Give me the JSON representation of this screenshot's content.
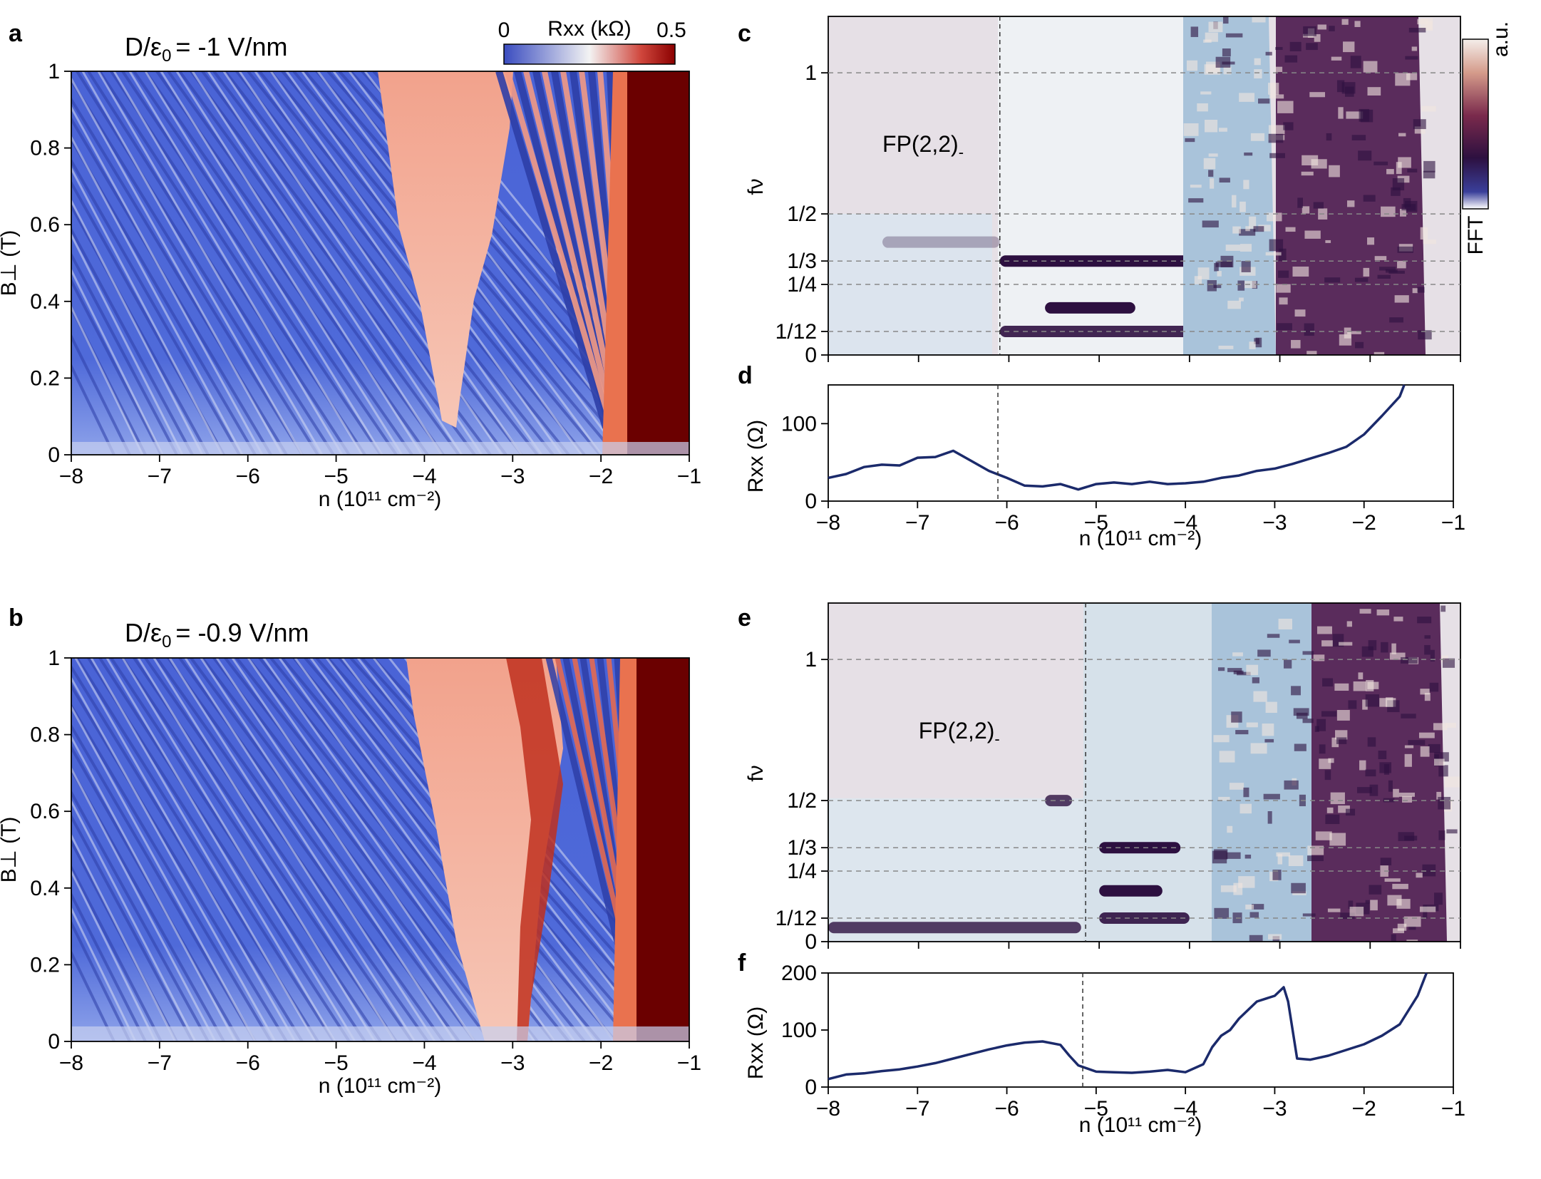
{
  "colors": {
    "cold": "#3a4cc0",
    "mid": "#f3f3f3",
    "hot": "#b40426",
    "darkred": "#6b0000",
    "fft_bg": "#e6e0e6",
    "fft_dark": "#2d1040",
    "fft_mid": "#b8cde0",
    "line": "#1b2a6b"
  },
  "chart_data": [
    {
      "id": "a",
      "type": "heatmap",
      "panel_label": "a",
      "title": "D/ε₀ = -1 V/nm",
      "title_main": "D/ε",
      "title_sub": "0",
      "title_rest": "= -1 V/nm",
      "xlabel": "n (10¹¹ cm⁻²)",
      "ylabel": "B⊥ (T)",
      "xlim": [
        -8,
        -1
      ],
      "ylim": [
        0,
        1
      ],
      "xticks": [
        -8,
        -7,
        -6,
        -5,
        -4,
        -3,
        -2,
        -1
      ],
      "xtick_labels": [
        "−8",
        "−7",
        "−6",
        "−5",
        "−4",
        "−3",
        "−2",
        "−1"
      ],
      "yticks": [
        0,
        0.2,
        0.4,
        0.6,
        0.8,
        1
      ],
      "ytick_labels": [
        "0",
        "0.2",
        "0.4",
        "0.6",
        "0.8",
        "1"
      ],
      "colorbar": {
        "label": "Rxx (kΩ)",
        "min": 0,
        "max": 0.5,
        "min_label": "0",
        "max_label": "0.5"
      },
      "features": {
        "red_region_n": [
          -4.3,
          -3.1
        ],
        "red_tip": [
          -3.6,
          0.08
        ],
        "dark_edge_n": -1.35
      }
    },
    {
      "id": "b",
      "type": "heatmap",
      "panel_label": "b",
      "title": "D/ε₀ = -0.9 V/nm",
      "title_main": "D/ε",
      "title_sub": "0",
      "title_rest": "= -0.9 V/nm",
      "xlabel": "n (10¹¹ cm⁻²)",
      "ylabel": "B⊥ (T)",
      "xlim": [
        -8,
        -1
      ],
      "ylim": [
        0,
        1
      ],
      "xticks": [
        -8,
        -7,
        -6,
        -5,
        -4,
        -3,
        -2,
        -1
      ],
      "xtick_labels": [
        "−8",
        "−7",
        "−6",
        "−5",
        "−4",
        "−3",
        "−2",
        "−1"
      ],
      "yticks": [
        0,
        0.2,
        0.4,
        0.6,
        0.8,
        1
      ],
      "ytick_labels": [
        "0",
        "0.2",
        "0.4",
        "0.6",
        "0.8",
        "1"
      ],
      "features": {
        "red_region_n": [
          -4.0,
          -2.6
        ],
        "red_tip": [
          -3.2,
          0.0
        ],
        "dark_edge_n": -1.25
      }
    },
    {
      "id": "c",
      "type": "heatmap",
      "panel_label": "c",
      "annotation": "FP(2,2)-",
      "annotation_main": "FP(2,2)",
      "annotation_sub": "-",
      "annotation_pos": [
        -7.4,
        0.72
      ],
      "ylabel": "fν",
      "xlim": [
        -8,
        -1
      ],
      "ylim": [
        0,
        1.2
      ],
      "xticks": [
        -8,
        -7,
        -6,
        -5,
        -4,
        -3,
        -2,
        -1
      ],
      "yticks": [
        0,
        0.0833,
        0.25,
        0.333,
        0.5,
        1
      ],
      "ytick_labels": [
        "0",
        "1/12",
        "1/4",
        "1/3",
        "1/2",
        "1"
      ],
      "vline_n": -6.1,
      "colorbar": {
        "label": "FFT",
        "unit": "a.u."
      },
      "bands": [
        {
          "n": [
            -6.1,
            -4.0
          ],
          "f": 0.333,
          "strength": 1.0
        },
        {
          "n": [
            -5.6,
            -4.6
          ],
          "f": 0.167,
          "strength": 1.0
        },
        {
          "n": [
            -6.1,
            -4.0
          ],
          "f": 0.0833,
          "strength": 0.9
        },
        {
          "n": [
            -7.4,
            -6.1
          ],
          "f": 0.4,
          "strength": 0.3
        }
      ]
    },
    {
      "id": "d",
      "type": "line",
      "panel_label": "d",
      "xlabel": "n (10¹¹ cm⁻²)",
      "ylabel": "Rxx (Ω)",
      "xlim": [
        -8,
        -1
      ],
      "ylim": [
        0,
        150
      ],
      "xticks": [
        -8,
        -7,
        -6,
        -5,
        -4,
        -3,
        -2,
        -1
      ],
      "xtick_labels": [
        "−8",
        "−7",
        "−6",
        "−5",
        "−4",
        "−3",
        "−2",
        "−1"
      ],
      "yticks": [
        0,
        100
      ],
      "ytick_labels": [
        "0",
        "100"
      ],
      "vline_n": -6.1,
      "x": [
        -8.0,
        -7.8,
        -7.6,
        -7.4,
        -7.2,
        -7.0,
        -6.8,
        -6.6,
        -6.4,
        -6.2,
        -6.0,
        -5.8,
        -5.6,
        -5.4,
        -5.2,
        -5.0,
        -4.8,
        -4.6,
        -4.4,
        -4.2,
        -4.0,
        -3.8,
        -3.6,
        -3.4,
        -3.2,
        -3.0,
        -2.8,
        -2.6,
        -2.4,
        -2.2,
        -2.0,
        -1.8,
        -1.6,
        -1.55
      ],
      "y": [
        30,
        35,
        44,
        47,
        46,
        56,
        57,
        65,
        52,
        39,
        30,
        20,
        19,
        22,
        15,
        22,
        24,
        22,
        25,
        22,
        23,
        25,
        30,
        33,
        39,
        42,
        48,
        55,
        62,
        70,
        86,
        110,
        135,
        152
      ]
    },
    {
      "id": "e",
      "type": "heatmap",
      "panel_label": "e",
      "annotation": "FP(2,2)-",
      "annotation_main": "FP(2,2)",
      "annotation_sub": "-",
      "annotation_pos": [
        -7.0,
        0.72
      ],
      "ylabel": "fν",
      "xlim": [
        -8,
        -1
      ],
      "ylim": [
        0,
        1.2
      ],
      "xticks": [
        -8,
        -7,
        -6,
        -5,
        -4,
        -3,
        -2,
        -1
      ],
      "yticks": [
        0,
        0.0833,
        0.25,
        0.333,
        0.5,
        1
      ],
      "ytick_labels": [
        "0",
        "1/12",
        "1/4",
        "1/3",
        "1/2",
        "1"
      ],
      "vline_n": -5.15,
      "bands": [
        {
          "n": [
            -5.0,
            -4.1
          ],
          "f": 0.333,
          "strength": 1.0
        },
        {
          "n": [
            -5.0,
            -4.3
          ],
          "f": 0.18,
          "strength": 1.0
        },
        {
          "n": [
            -5.0,
            -4.0
          ],
          "f": 0.0833,
          "strength": 0.9
        },
        {
          "n": [
            -8.0,
            -5.2
          ],
          "f": 0.05,
          "strength": 0.8
        },
        {
          "n": [
            -5.6,
            -5.3
          ],
          "f": 0.5,
          "strength": 0.8
        }
      ]
    },
    {
      "id": "f",
      "type": "line",
      "panel_label": "f",
      "xlabel": "n (10¹¹ cm⁻²)",
      "ylabel": "Rxx (Ω)",
      "xlim": [
        -8,
        -1
      ],
      "ylim": [
        0,
        200
      ],
      "xticks": [
        -8,
        -7,
        -6,
        -5,
        -4,
        -3,
        -2,
        -1
      ],
      "xtick_labels": [
        "−8",
        "−7",
        "−6",
        "−5",
        "−4",
        "−3",
        "−2",
        "−1"
      ],
      "yticks": [
        0,
        100,
        200
      ],
      "ytick_labels": [
        "0",
        "100",
        "200"
      ],
      "vline_n": -5.15,
      "x": [
        -8.0,
        -7.8,
        -7.6,
        -7.4,
        -7.2,
        -7.0,
        -6.8,
        -6.6,
        -6.4,
        -6.2,
        -6.0,
        -5.8,
        -5.6,
        -5.4,
        -5.3,
        -5.2,
        -5.0,
        -4.8,
        -4.6,
        -4.4,
        -4.2,
        -4.0,
        -3.8,
        -3.7,
        -3.6,
        -3.5,
        -3.4,
        -3.2,
        -3.0,
        -2.9,
        -2.85,
        -2.8,
        -2.75,
        -2.6,
        -2.4,
        -2.2,
        -2.0,
        -1.8,
        -1.6,
        -1.4,
        -1.3
      ],
      "y": [
        14,
        22,
        24,
        28,
        31,
        36,
        42,
        50,
        58,
        66,
        73,
        78,
        80,
        74,
        55,
        38,
        27,
        26,
        25,
        27,
        30,
        26,
        40,
        70,
        90,
        100,
        120,
        150,
        160,
        175,
        150,
        100,
        50,
        48,
        55,
        65,
        75,
        90,
        110,
        160,
        200
      ]
    }
  ]
}
